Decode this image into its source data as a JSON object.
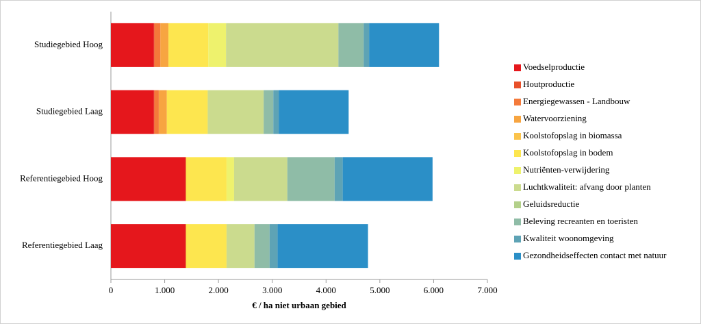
{
  "chart_data": {
    "type": "stacked-bar-horizontal",
    "x_label": "€ / ha niet urbaan gebied",
    "categories": [
      "Studiegebied Hoog",
      "Studiegebied Laag",
      "Referentiegebied Hoog",
      "Referentiegebied Laag"
    ],
    "series": [
      {
        "name": "Voedselproductie",
        "color": "#e5171c",
        "values": [
          800,
          800,
          1375,
          1375
        ]
      },
      {
        "name": "Houtproductie",
        "color": "#e8502a",
        "values": [
          10,
          10,
          25,
          25
        ]
      },
      {
        "name": "Energiegewassen - Landbouw",
        "color": "#f47a3a",
        "values": [
          110,
          80,
          0,
          0
        ]
      },
      {
        "name": "Watervoorziening",
        "color": "#f7a541",
        "values": [
          150,
          150,
          0,
          0
        ]
      },
      {
        "name": "Koolstofopslag in biomassa",
        "color": "#fbc34b",
        "values": [
          0,
          0,
          0,
          0
        ]
      },
      {
        "name": "Koolstofopslag in bodem",
        "color": "#fde64f",
        "values": [
          740,
          760,
          750,
          750
        ]
      },
      {
        "name": "Nutriënten-verwijdering",
        "color": "#eef26d",
        "values": [
          330,
          0,
          140,
          0
        ]
      },
      {
        "name": "Luchtkwaliteit: afvang door planten",
        "color": "#cbdb8e",
        "values": [
          2090,
          1040,
          990,
          520
        ]
      },
      {
        "name": "Geluidsreductie",
        "color": "#b3d08a",
        "values": [
          0,
          0,
          0,
          0
        ]
      },
      {
        "name": "Beleving recreanten en toeristen",
        "color": "#8fbca7",
        "values": [
          470,
          180,
          880,
          280
        ]
      },
      {
        "name": "Kwaliteit woonomgeving",
        "color": "#5ea3b5",
        "values": [
          100,
          100,
          150,
          150
        ]
      },
      {
        "name": "Gezondheidseffecten contact met natuur",
        "color": "#2b8fc7",
        "values": [
          1300,
          1300,
          1670,
          1680
        ]
      }
    ],
    "xlim": [
      0,
      7000
    ],
    "xticks": [
      0,
      {
        "value": 1000,
        "label": "1.000"
      },
      {
        "value": 2000,
        "label": "2.000"
      },
      {
        "value": 3000,
        "label": "3.000"
      },
      {
        "value": 4000,
        "label": "4.000"
      },
      {
        "value": 5000,
        "label": "5.000"
      },
      {
        "value": 6000,
        "label": "6.000"
      },
      {
        "value": 7000,
        "label": "7.000"
      }
    ],
    "grid": false,
    "legend": "right"
  }
}
